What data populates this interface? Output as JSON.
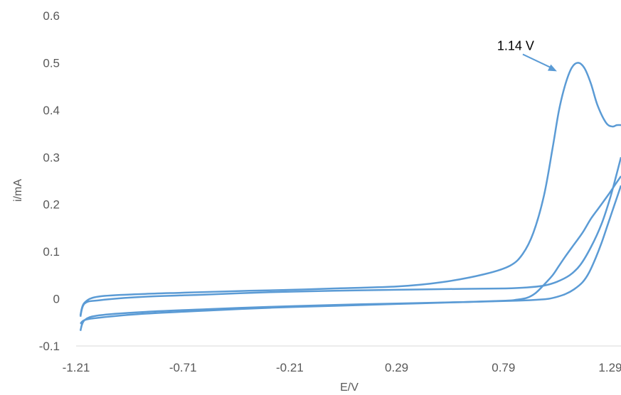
{
  "chart_data": {
    "type": "line",
    "title": "",
    "xlabel": "E/V",
    "ylabel": "i/mA",
    "xlim": [
      -1.21,
      1.34
    ],
    "ylim": [
      -0.1,
      0.6
    ],
    "x_ticks": [
      "-1.21",
      "-0.71",
      "-0.21",
      "0.29",
      "0.79",
      "1.29"
    ],
    "x_tick_values": [
      -1.21,
      -0.71,
      -0.21,
      0.29,
      0.79,
      1.29
    ],
    "y_ticks": [
      "-0.1",
      "0",
      "0.1",
      "0.2",
      "0.3",
      "0.4",
      "0.5",
      "0.6"
    ],
    "y_tick_values": [
      -0.1,
      0,
      0.1,
      0.2,
      0.3,
      0.4,
      0.5,
      0.6
    ],
    "grid": false,
    "legend": "none",
    "series_color": "#5b9bd5",
    "annotations": [
      {
        "text": "1.14 V",
        "x": 1.14,
        "y": 0.5
      }
    ],
    "series": [
      {
        "x": [
          -1.19,
          -1.17,
          -1.1,
          -0.9,
          -0.7,
          -0.4,
          -0.2,
          0.0,
          0.29,
          0.5,
          0.7,
          0.82,
          0.88,
          0.93,
          0.98,
          1.02,
          1.05,
          1.08,
          1.11,
          1.14,
          1.17,
          1.2,
          1.23,
          1.27,
          1.3,
          1.32,
          1.34
        ],
        "y": [
          -0.035,
          -0.008,
          0.005,
          0.01,
          0.013,
          0.017,
          0.019,
          0.022,
          0.026,
          0.035,
          0.052,
          0.07,
          0.095,
          0.14,
          0.22,
          0.32,
          0.4,
          0.455,
          0.49,
          0.5,
          0.488,
          0.455,
          0.41,
          0.373,
          0.365,
          0.368,
          0.368
        ]
      },
      {
        "x": [
          1.34,
          1.31,
          1.28,
          1.24,
          1.2,
          1.16,
          1.12,
          1.08,
          1.05,
          1.02,
          0.98,
          0.94,
          0.9,
          0.85,
          0.8,
          0.6,
          0.29,
          0.0,
          -0.3,
          -0.6,
          -0.9,
          -1.1,
          -1.17,
          -1.19
        ],
        "y": [
          0.26,
          0.24,
          0.22,
          0.195,
          0.17,
          0.14,
          0.115,
          0.09,
          0.07,
          0.05,
          0.03,
          0.012,
          0.002,
          -0.002,
          -0.004,
          -0.007,
          -0.011,
          -0.015,
          -0.019,
          -0.025,
          -0.032,
          -0.04,
          -0.045,
          -0.053
        ]
      },
      {
        "x": [
          -1.19,
          -1.17,
          -1.1,
          -0.9,
          -0.6,
          -0.3,
          0.0,
          0.29,
          0.6,
          0.8,
          0.9,
          0.98,
          1.04,
          1.1,
          1.15,
          1.2,
          1.25,
          1.29,
          1.32,
          1.34
        ],
        "y": [
          -0.038,
          -0.01,
          -0.003,
          0.004,
          0.009,
          0.014,
          0.017,
          0.019,
          0.021,
          0.022,
          0.024,
          0.028,
          0.036,
          0.05,
          0.072,
          0.11,
          0.16,
          0.215,
          0.265,
          0.3
        ]
      },
      {
        "x": [
          1.34,
          1.31,
          1.28,
          1.25,
          1.22,
          1.19,
          1.16,
          1.12,
          1.08,
          1.04,
          1.0,
          0.95,
          0.85,
          0.6,
          0.29,
          0.0,
          -0.3,
          -0.6,
          -0.9,
          -1.1,
          -1.17,
          -1.19
        ],
        "y": [
          0.24,
          0.2,
          0.16,
          0.12,
          0.085,
          0.055,
          0.035,
          0.02,
          0.01,
          0.004,
          0.0,
          -0.002,
          -0.004,
          -0.007,
          -0.01,
          -0.013,
          -0.017,
          -0.022,
          -0.028,
          -0.035,
          -0.045,
          -0.068
        ]
      }
    ]
  }
}
